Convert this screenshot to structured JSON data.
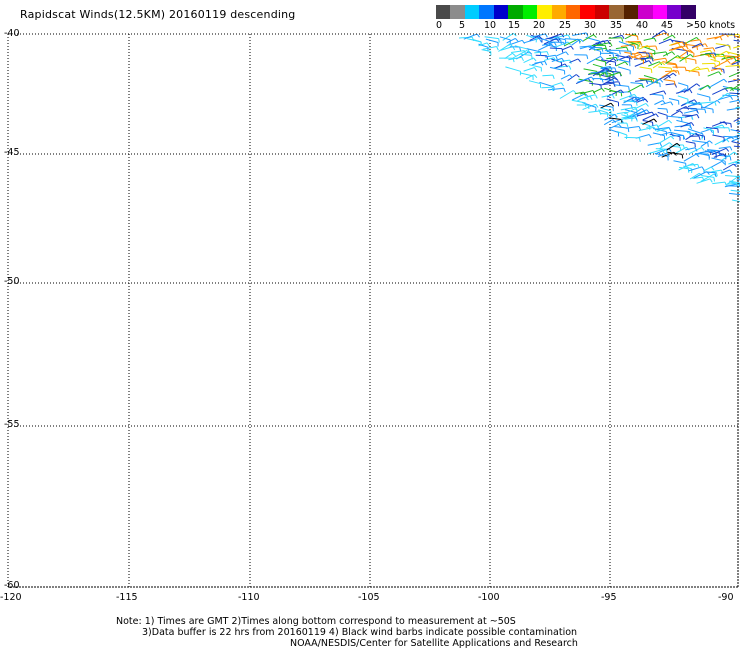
{
  "title": "Rapidscat Winds(12.5KM) 20160119 descending",
  "colorbar": {
    "labels": [
      "0",
      "5",
      "10",
      "15",
      "20",
      "25",
      "30",
      "35",
      "40",
      "45",
      ">50 knots"
    ],
    "colors": [
      "#4a4a4a",
      "#8c8c8c",
      "#00ccff",
      "#0077ff",
      "#0000cc",
      "#00aa00",
      "#00ee00",
      "#ffee00",
      "#ffaa00",
      "#ff6600",
      "#ff0000",
      "#cc0000",
      "#996633",
      "#552200",
      "#cc00cc",
      "#ff00ff",
      "#7700cc",
      "#330066"
    ]
  },
  "map": {
    "lat_labels": [
      "-40",
      "-45",
      "-50",
      "-55",
      "-60"
    ],
    "lon_labels": [
      "-120",
      "-115",
      "-110",
      "-105",
      "-100",
      "-95",
      "-90"
    ]
  },
  "notes": {
    "line1": "Note: 1) Times are GMT 2)Times along bottom correspond to measurement at ~50S",
    "line2": "3)Data buffer is 22 hrs from 20160119 4) Black wind barbs indicate possible contamination",
    "line3": "NOAA/NESDIS/Center for Satellite Applications and Research"
  },
  "wind_colors": {
    "light": "#33ddff",
    "mid": "#1a9bff",
    "strong": "#1440cc",
    "green": "#22bb22",
    "yellow": "#eedd00",
    "orange": "#ff8800",
    "contaminated": "#000000"
  }
}
